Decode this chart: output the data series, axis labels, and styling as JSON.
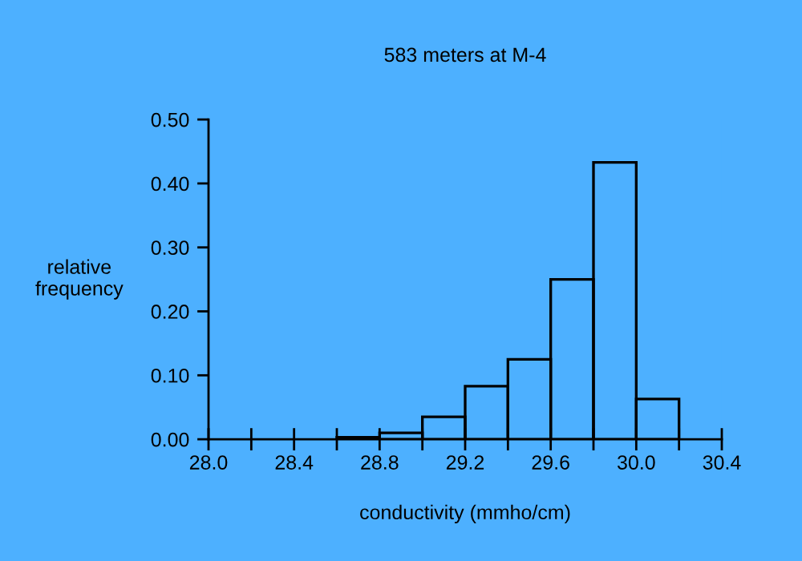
{
  "chart_data": {
    "type": "histogram",
    "title": "583 meters at M-4",
    "xlabel": "conductivity (mmho/cm)",
    "ylabel": "relative\nfrequency",
    "bins": [
      28.6,
      28.8,
      29.0,
      29.2,
      29.4,
      29.6,
      29.8,
      30.0,
      30.2
    ],
    "values": [
      0.003,
      0.01,
      0.035,
      0.083,
      0.125,
      0.25,
      0.433,
      0.063
    ],
    "color": "#000000",
    "xlim": [
      28.0,
      30.4
    ],
    "ylim": [
      0,
      0.5
    ],
    "xticks": [
      {
        "value": 28.0,
        "label": "28.0"
      },
      {
        "value": 28.2,
        "label": null
      },
      {
        "value": 28.4,
        "label": "28.4"
      },
      {
        "value": 28.6,
        "label": null
      },
      {
        "value": 28.8,
        "label": "28.8"
      },
      {
        "value": 29.0,
        "label": null
      },
      {
        "value": 29.2,
        "label": "29.2"
      },
      {
        "value": 29.4,
        "label": null
      },
      {
        "value": 29.6,
        "label": "29.6"
      },
      {
        "value": 29.8,
        "label": null
      },
      {
        "value": 30.0,
        "label": "30.0"
      },
      {
        "value": 30.2,
        "label": null
      },
      {
        "value": 30.4,
        "label": "30.4"
      }
    ],
    "yticks": [
      {
        "value": 0,
        "label": "0.00"
      },
      {
        "value": 0.1,
        "label": "0.10"
      },
      {
        "value": 0.2,
        "label": "0.20"
      },
      {
        "value": 0.3,
        "label": "0.30"
      },
      {
        "value": 0.4,
        "label": "0.40"
      },
      {
        "value": 0.5,
        "label": "0.50"
      }
    ],
    "grid": false
  }
}
